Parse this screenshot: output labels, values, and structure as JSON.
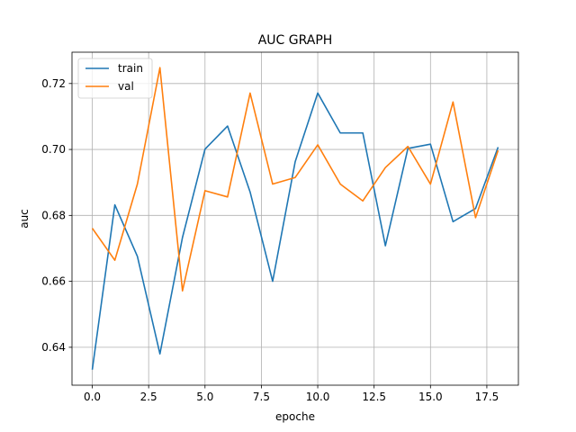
{
  "chart_data": {
    "type": "line",
    "title": "AUC GRAPH",
    "xlabel": "epoche",
    "ylabel": "auc",
    "xlim": [
      -0.9,
      18.9
    ],
    "ylim": [
      0.6285,
      0.7295
    ],
    "grid": true,
    "legend_position": "top-left",
    "x": [
      0,
      1,
      2,
      3,
      4,
      5,
      6,
      7,
      8,
      9,
      10,
      11,
      12,
      13,
      14,
      15,
      16,
      17,
      18
    ],
    "x_ticks": [
      0.0,
      2.5,
      5.0,
      7.5,
      10.0,
      12.5,
      15.0,
      17.5
    ],
    "x_tick_labels": [
      "0.0",
      "2.5",
      "5.0",
      "7.5",
      "10.0",
      "12.5",
      "15.0",
      "17.5"
    ],
    "y_ticks": [
      0.64,
      0.66,
      0.68,
      0.7,
      0.72
    ],
    "y_tick_labels": [
      "0.64",
      "0.66",
      "0.68",
      "0.70",
      "0.72"
    ],
    "series": [
      {
        "name": "train",
        "color": "#1f77b4",
        "values": [
          0.6332,
          0.6832,
          0.6676,
          0.638,
          0.6733,
          0.7001,
          0.7071,
          0.6871,
          0.66,
          0.6963,
          0.7171,
          0.705,
          0.705,
          0.6708,
          0.7003,
          0.7016,
          0.6781,
          0.6821,
          0.7007
        ]
      },
      {
        "name": "val",
        "color": "#ff7f0e",
        "values": [
          0.6761,
          0.6664,
          0.6895,
          0.7248,
          0.6571,
          0.6875,
          0.6856,
          0.7171,
          0.6895,
          0.6915,
          0.7014,
          0.6895,
          0.6844,
          0.6945,
          0.7009,
          0.6895,
          0.7144,
          0.6793,
          0.6997
        ]
      }
    ]
  }
}
